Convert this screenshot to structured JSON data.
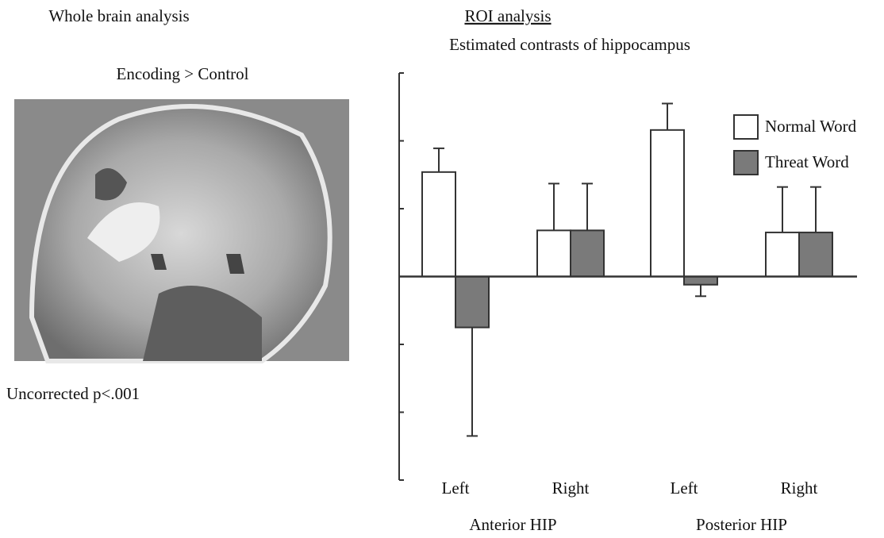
{
  "left_panel": {
    "title": "Whole brain analysis",
    "contrast": "Encoding > Control",
    "threshold": "Uncorrected p<.001"
  },
  "chart_data": {
    "type": "bar",
    "title": "ROI analysis",
    "subtitle": "Estimated contrasts of hippocampus",
    "categories": [
      "Left",
      "Right",
      "Left",
      "Right"
    ],
    "groups": [
      {
        "name": "Anterior HIP",
        "span": [
          0,
          1
        ]
      },
      {
        "name": "Posterior HIP",
        "span": [
          2,
          3
        ]
      }
    ],
    "series": [
      {
        "name": "Normal Word",
        "color": "#ffffff",
        "values": [
          1.54,
          0.68,
          2.16,
          0.65
        ],
        "errors": [
          0.35,
          0.69,
          0.39,
          0.67
        ]
      },
      {
        "name": "Threat Word",
        "color": "#7a7a7a",
        "values": [
          -0.75,
          0.68,
          -0.12,
          0.65
        ],
        "errors": [
          1.6,
          0.69,
          0.17,
          0.67
        ]
      }
    ],
    "ylim": [
      -3,
      3
    ],
    "yticks": [
      -3,
      -2,
      -1,
      0,
      1,
      2,
      3
    ],
    "legend": "upper right",
    "grid": false
  }
}
